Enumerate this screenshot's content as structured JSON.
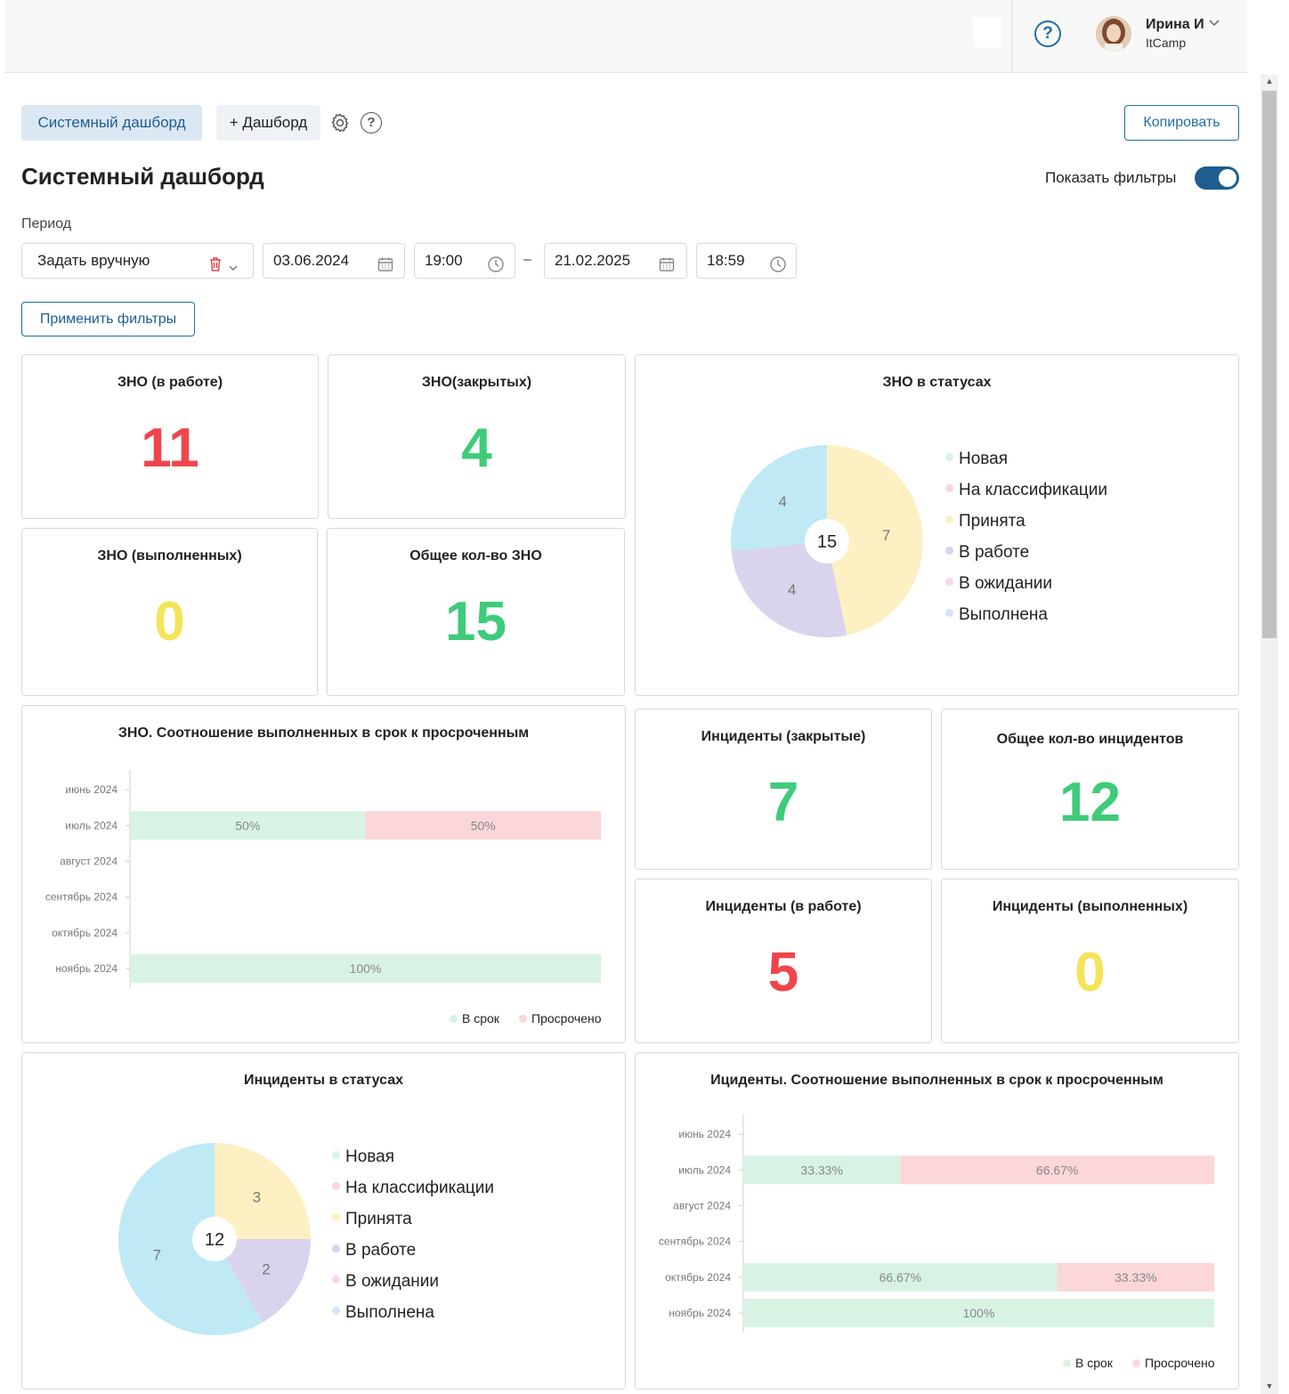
{
  "header": {
    "help_label": "?",
    "user": {
      "name": "Ирина И",
      "company": "ItCamp"
    }
  },
  "toolbar": {
    "tab_active": "Системный дашборд",
    "add_dashboard": "+ Дашборд",
    "copy_label": "Копировать",
    "help_label": "?"
  },
  "page": {
    "title": "Системный дашборд",
    "show_filters_label": "Показать фильтры",
    "show_filters_on": true
  },
  "filters": {
    "period_label": "Период",
    "period_mode": "Задать вручную",
    "date_from": "03.06.2024",
    "time_from": "19:00",
    "separator": "–",
    "date_to": "21.02.2025",
    "time_to": "18:59",
    "apply_label": "Применить фильтры"
  },
  "widgets": {
    "zno_in_work": {
      "title": "ЗНО (в работе)",
      "value": "11",
      "color": "#f0454b"
    },
    "zno_closed": {
      "title": "ЗНО(закрытых)",
      "value": "4",
      "color": "#3ecb7a"
    },
    "zno_done": {
      "title": "ЗНО (выполненных)",
      "value": "0",
      "color": "#f3e45a"
    },
    "zno_total": {
      "title": "Общее кол-во ЗНО",
      "value": "15",
      "color": "#3ecb7a"
    },
    "inc_closed": {
      "title": "Инциденты (закрытые)",
      "value": "7",
      "color": "#3ecb7a"
    },
    "inc_total": {
      "title": "Общее кол-во инцидентов",
      "value": "12",
      "color": "#3ecb7a"
    },
    "inc_in_work": {
      "title": "Инциденты (в работе)",
      "value": "5",
      "color": "#f0454b"
    },
    "inc_done": {
      "title": "Инциденты (выполненных)",
      "value": "0",
      "color": "#f3e45a"
    }
  },
  "status_legend": [
    {
      "label": "Новая",
      "color": "#d8f3e4"
    },
    {
      "label": "На классификации",
      "color": "#fbd6da"
    },
    {
      "label": "Принята",
      "color": "#fdf0c3"
    },
    {
      "label": "В работе",
      "color": "#d9d3ee"
    },
    {
      "label": "В ожидании",
      "color": "#f6d7f0"
    },
    {
      "label": "Выполнена",
      "color": "#d3e4f7"
    }
  ],
  "ratio_legend": {
    "on_time": "В срок",
    "overdue": "Просрочено",
    "on_time_color": "#d8f3e4",
    "overdue_color": "#fbd6da"
  },
  "chart_data": [
    {
      "id": "zno_status_pie",
      "type": "pie",
      "title": "ЗНО в статусах",
      "total": "15",
      "slices": [
        {
          "label": "Принята",
          "value": 7,
          "color": "#fdf0c3"
        },
        {
          "label": "В работе",
          "value": 4,
          "color": "#d9d3ee"
        },
        {
          "label": "Выполнена",
          "value": 4,
          "color": "#bfe9f5"
        }
      ]
    },
    {
      "id": "zno_ratio_bar",
      "type": "bar",
      "title": "ЗНО. Соотношение выполненных в срок к просроченным",
      "categories": [
        "июнь 2024",
        "июль 2024",
        "август 2024",
        "сентябрь 2024",
        "октябрь 2024",
        "ноябрь 2024"
      ],
      "series": [
        {
          "name": "В срок",
          "values": [
            0,
            50,
            0,
            0,
            0,
            100
          ],
          "labels": [
            "",
            "50%",
            "",
            "",
            "",
            "100%"
          ]
        },
        {
          "name": "Просрочено",
          "values": [
            0,
            50,
            0,
            0,
            0,
            0
          ],
          "labels": [
            "",
            "50%",
            "",
            "",
            "",
            ""
          ]
        }
      ]
    },
    {
      "id": "inc_status_pie",
      "type": "pie",
      "title": "Инциденты в статусах",
      "total": "12",
      "slices": [
        {
          "label": "Принята",
          "value": 3,
          "color": "#fdf0c3"
        },
        {
          "label": "В работе",
          "value": 2,
          "color": "#d9d3ee"
        },
        {
          "label": "Выполнена",
          "value": 7,
          "color": "#bfe9f5"
        }
      ]
    },
    {
      "id": "inc_ratio_bar",
      "type": "bar",
      "title": "Ициденты. Соотношение выполненных в срок к просроченным",
      "categories": [
        "июнь 2024",
        "июль 2024",
        "август 2024",
        "сентябрь 2024",
        "октябрь 2024",
        "ноябрь 2024"
      ],
      "series": [
        {
          "name": "В срок",
          "values": [
            0,
            33.33,
            0,
            0,
            66.67,
            100
          ],
          "labels": [
            "",
            "33.33%",
            "",
            "",
            "66.67%",
            "100%"
          ]
        },
        {
          "name": "Просрочено",
          "values": [
            0,
            66.67,
            0,
            0,
            33.33,
            0
          ],
          "labels": [
            "",
            "66.67%",
            "",
            "",
            "33.33%",
            ""
          ]
        }
      ]
    }
  ]
}
